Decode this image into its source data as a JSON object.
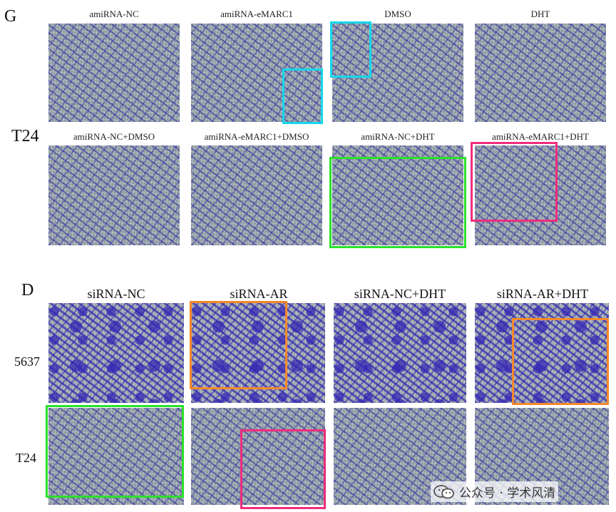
{
  "figure_g": {
    "letter": "G",
    "row_label": "T24",
    "row1_labels": [
      "amiRNA-NC",
      "amiRNA-eMARC1",
      "DMSO",
      "DHT"
    ],
    "row2_labels": [
      "amiRNA-NC+DMSO",
      "amiRNA-eMARC1+DMSO",
      "amiRNA-NC+DHT",
      "amiRNA-eMARC1+DHT"
    ]
  },
  "figure_d": {
    "letter": "D",
    "column_labels": [
      "siRNA-NC",
      "siRNA-AR",
      "siRNA-NC+DHT",
      "siRNA-AR+DHT"
    ],
    "row_labels": [
      "5637",
      "T24"
    ]
  },
  "highlight_colors": {
    "cyan": "#14d8ec",
    "green": "#2be02b",
    "magenta": "#ee2d7c",
    "orange": "#f5882b"
  },
  "watermark": {
    "icon": "wechat-icon",
    "text": "公众号 · 学术风清"
  }
}
